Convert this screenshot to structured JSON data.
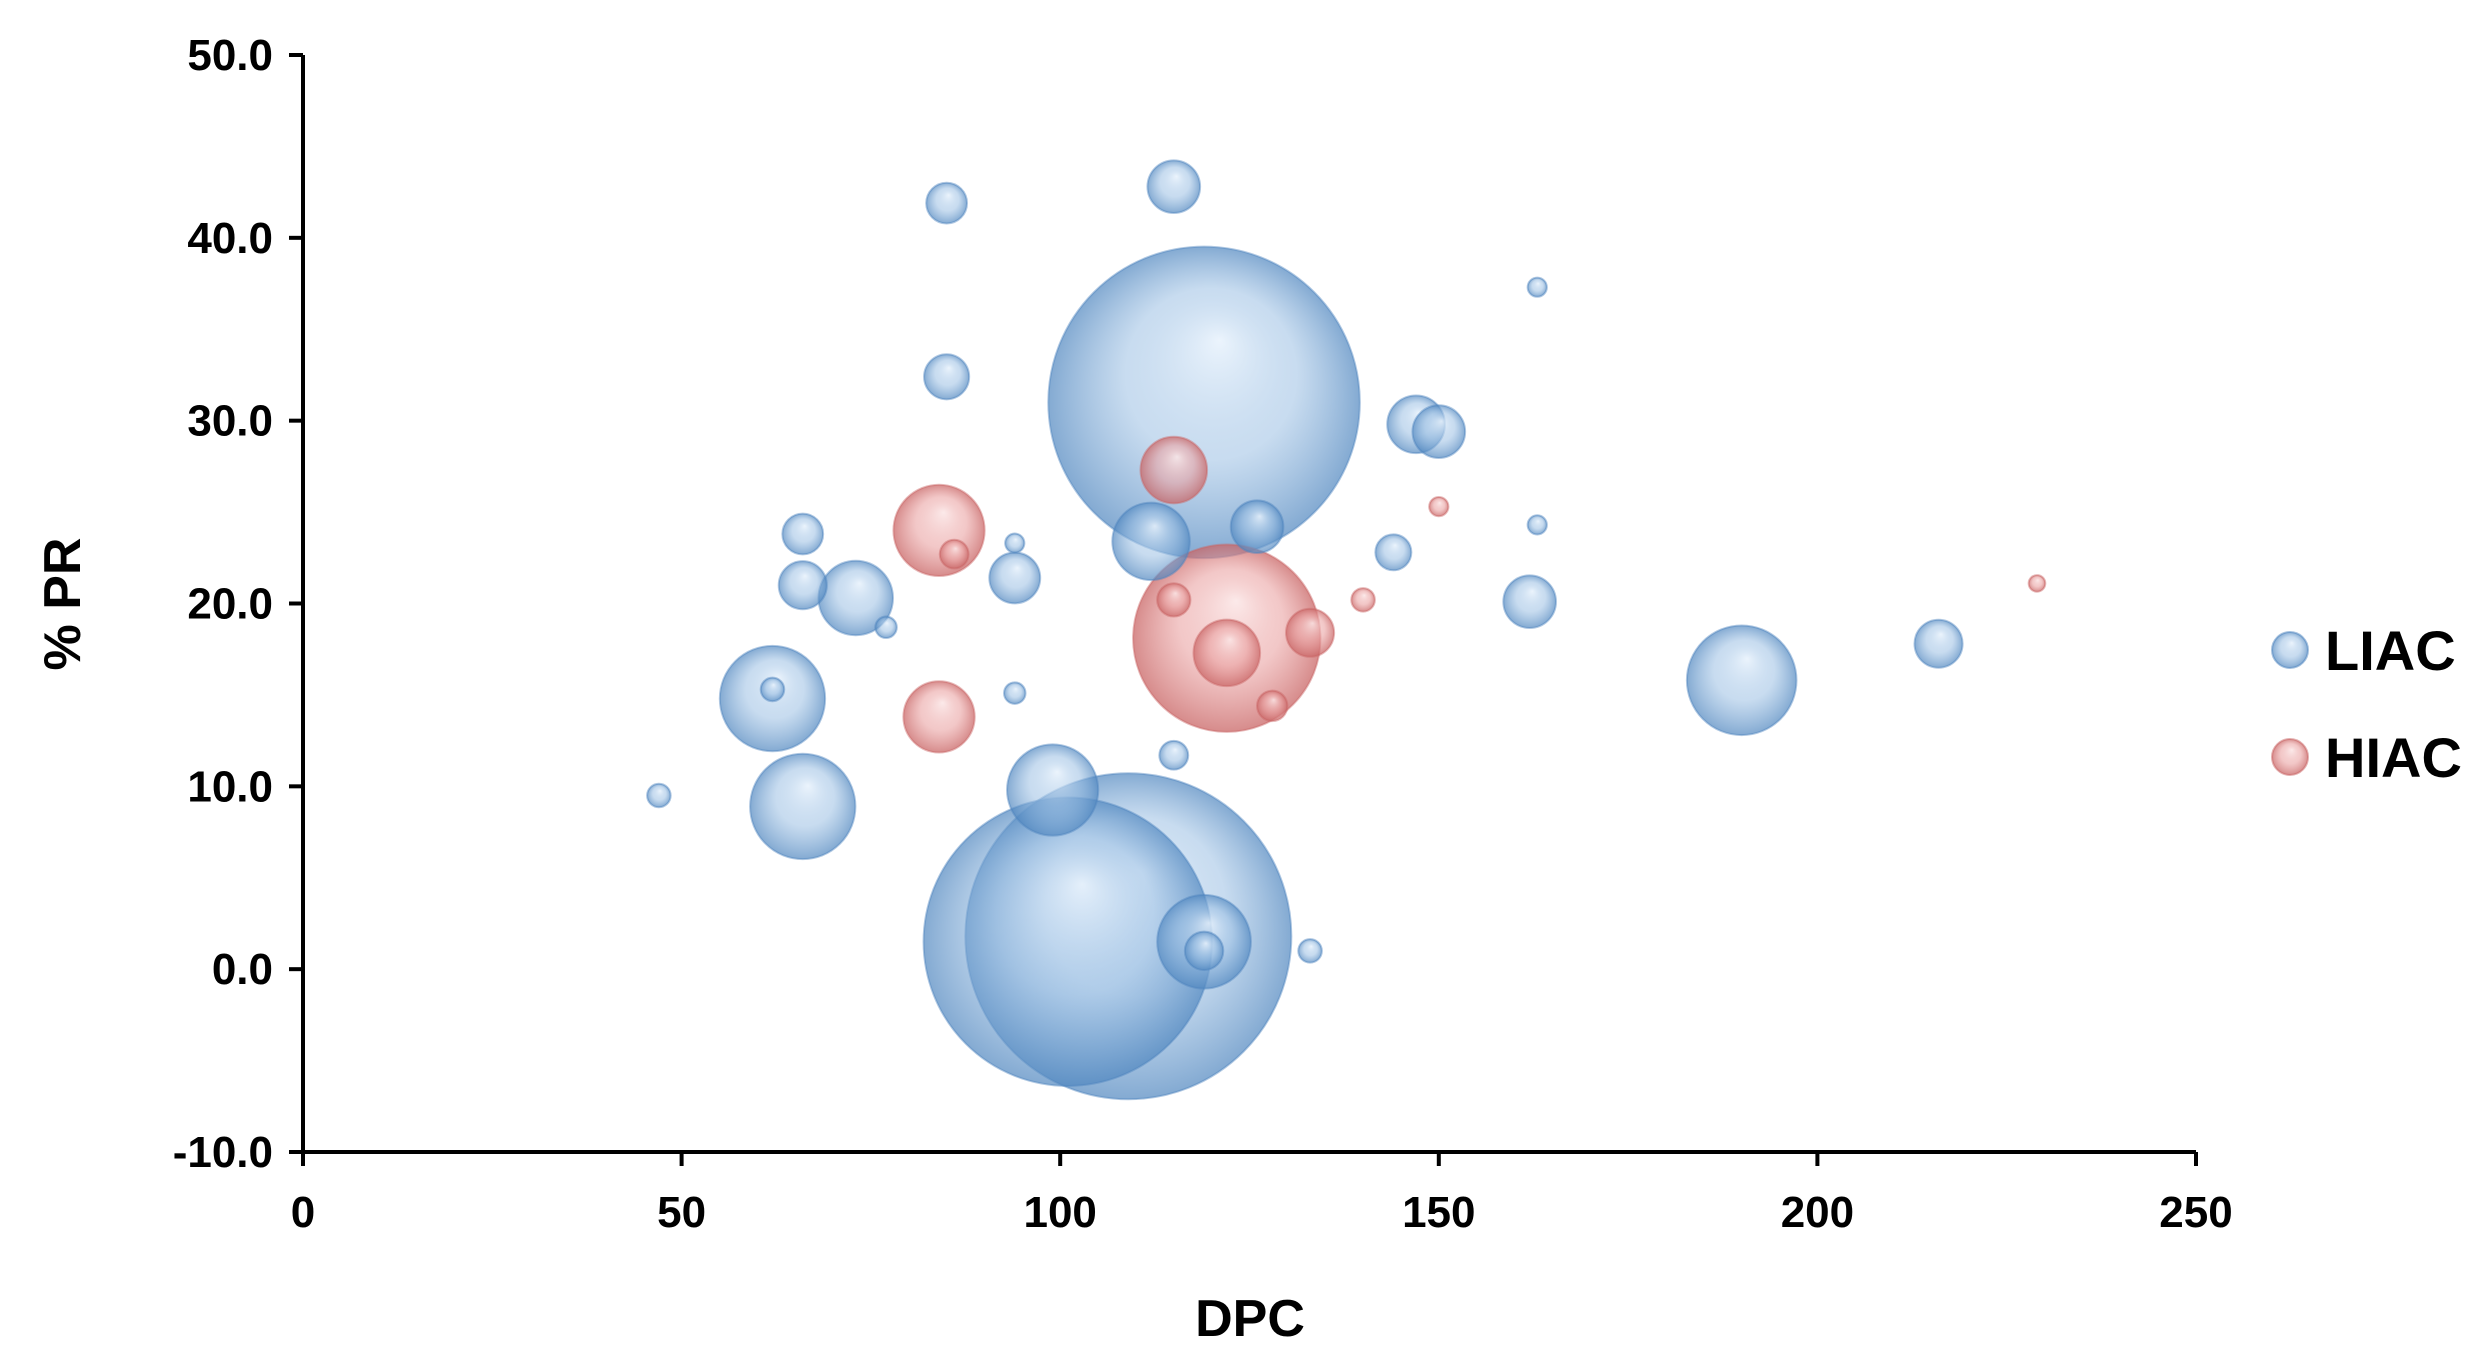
{
  "chart_data": {
    "type": "scatter",
    "variant": "bubble",
    "xlabel": "DPC",
    "ylabel": "% PR",
    "xlim": [
      0,
      250
    ],
    "ylim": [
      -10,
      50
    ],
    "x_ticks": [
      "0",
      "50",
      "100",
      "150",
      "200",
      "250"
    ],
    "y_ticks": [
      "-10.0",
      "0.0",
      "10.0",
      "20.0",
      "30.0",
      "40.0",
      "50.0"
    ],
    "grid": false,
    "legend_position": "right",
    "series": [
      {
        "name": "LIAC",
        "color": "#8fb6dc",
        "points": [
          {
            "x": 47,
            "y": 9.5,
            "size": 0.6
          },
          {
            "x": 62,
            "y": 14.8,
            "size": 12
          },
          {
            "x": 62,
            "y": 15.3,
            "size": 0.6
          },
          {
            "x": 66,
            "y": 8.9,
            "size": 12
          },
          {
            "x": 66,
            "y": 21.0,
            "size": 2.5
          },
          {
            "x": 66,
            "y": 23.8,
            "size": 1.8
          },
          {
            "x": 73,
            "y": 20.3,
            "size": 6
          },
          {
            "x": 77,
            "y": 18.7,
            "size": 0.5
          },
          {
            "x": 85,
            "y": 41.9,
            "size": 1.8
          },
          {
            "x": 85,
            "y": 32.4,
            "size": 2.2
          },
          {
            "x": 94,
            "y": 23.3,
            "size": 0.4
          },
          {
            "x": 94,
            "y": 15.1,
            "size": 0.5
          },
          {
            "x": 94,
            "y": 21.4,
            "size": 2.8
          },
          {
            "x": 99,
            "y": 9.8,
            "size": 9
          },
          {
            "x": 101,
            "y": 1.5,
            "size": 90
          },
          {
            "x": 109,
            "y": 1.8,
            "size": 115
          },
          {
            "x": 112,
            "y": 23.4,
            "size": 6.5
          },
          {
            "x": 115,
            "y": 42.8,
            "size": 3
          },
          {
            "x": 115,
            "y": 11.7,
            "size": 0.9
          },
          {
            "x": 119,
            "y": 31.0,
            "size": 105
          },
          {
            "x": 119,
            "y": 1.5,
            "size": 9.5
          },
          {
            "x": 119,
            "y": 1.0,
            "size": 1.6
          },
          {
            "x": 126,
            "y": 24.2,
            "size": 3
          },
          {
            "x": 133,
            "y": 1.0,
            "size": 0.6
          },
          {
            "x": 144,
            "y": 22.8,
            "size": 1.4
          },
          {
            "x": 147,
            "y": 29.8,
            "size": 3.6
          },
          {
            "x": 150,
            "y": 29.4,
            "size": 3
          },
          {
            "x": 162,
            "y": 20.1,
            "size": 3
          },
          {
            "x": 163,
            "y": 37.3,
            "size": 0.4
          },
          {
            "x": 163,
            "y": 24.3,
            "size": 0.4
          },
          {
            "x": 190,
            "y": 15.8,
            "size": 13
          },
          {
            "x": 216,
            "y": 17.8,
            "size": 2.5
          }
        ]
      },
      {
        "name": "HIAC",
        "color": "#e9a0a0",
        "points": [
          {
            "x": 84,
            "y": 24.0,
            "size": 9
          },
          {
            "x": 84,
            "y": 13.8,
            "size": 5.5
          },
          {
            "x": 86,
            "y": 22.7,
            "size": 0.9
          },
          {
            "x": 115,
            "y": 27.3,
            "size": 4.8
          },
          {
            "x": 115,
            "y": 20.2,
            "size": 1.2
          },
          {
            "x": 122,
            "y": 18.1,
            "size": 38
          },
          {
            "x": 122,
            "y": 17.3,
            "size": 4.8
          },
          {
            "x": 128,
            "y": 14.4,
            "size": 1
          },
          {
            "x": 133,
            "y": 18.4,
            "size": 2.5
          },
          {
            "x": 140,
            "y": 20.2,
            "size": 0.6
          },
          {
            "x": 150,
            "y": 25.3,
            "size": 0.4
          },
          {
            "x": 229,
            "y": 21.1,
            "size": 0.3
          }
        ]
      }
    ]
  }
}
